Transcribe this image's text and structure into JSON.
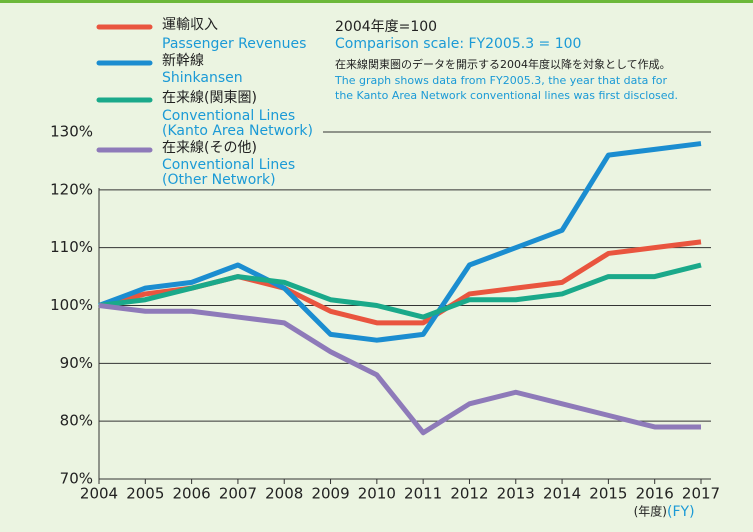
{
  "chart_data": {
    "type": "line",
    "notes": [
      "2004年度=100",
      "Comparison scale: FY2005.3 = 100",
      "在来線関東圏のデータを開示する2004年度以降を対象として作成。",
      "The graph shows data from FY2005.3, the year that data for",
      "the Kanto Area Network conventional lines was first disclosed."
    ],
    "x_axis_label": "(年度)",
    "x_axis_label_en": "(FY)",
    "x": [
      2004,
      2005,
      2006,
      2007,
      2008,
      2009,
      2010,
      2011,
      2012,
      2013,
      2014,
      2015,
      2016,
      2017
    ],
    "xlim": [
      2004,
      2017
    ],
    "xticks": [
      2004,
      2005,
      2006,
      2007,
      2008,
      2009,
      2010,
      2011,
      2012,
      2013,
      2014,
      2015,
      2016,
      2017
    ],
    "ylim": [
      70,
      130
    ],
    "yticks": [
      {
        "value": 70,
        "label": "70%"
      },
      {
        "value": 80,
        "label": "80%"
      },
      {
        "value": 90,
        "label": "90%"
      },
      {
        "value": 100,
        "label": "100%"
      },
      {
        "value": 110,
        "label": "110%"
      },
      {
        "value": 120,
        "label": "120%"
      },
      {
        "value": 130,
        "label": "130%"
      }
    ],
    "grid": true,
    "series": [
      {
        "name": "運輸収入",
        "name_en": [
          "Passenger Revenues"
        ],
        "color": "#e9553f",
        "values": [
          100,
          102,
          103,
          105,
          103,
          99,
          97,
          97,
          102,
          103,
          104,
          109,
          110,
          111
        ]
      },
      {
        "name": "新幹線",
        "name_en": [
          "Shinkansen"
        ],
        "color": "#1b8dd0",
        "values": [
          100,
          103,
          104,
          107,
          103,
          95,
          94,
          95,
          107,
          110,
          113,
          126,
          127,
          128
        ]
      },
      {
        "name": "在来線(関東圏)",
        "name_en": [
          "Conventional Lines",
          "(Kanto Area Network)"
        ],
        "color": "#1aa98a",
        "values": [
          100,
          101,
          103,
          105,
          104,
          101,
          100,
          98,
          101,
          101,
          102,
          105,
          105,
          107
        ]
      },
      {
        "name": "在来線(その他)",
        "name_en": [
          "Conventional Lines",
          "(Other Network)"
        ],
        "color": "#8e7ab9",
        "values": [
          100,
          99,
          99,
          98,
          97,
          92,
          88,
          78,
          83,
          85,
          83,
          81,
          79,
          79
        ]
      }
    ]
  }
}
